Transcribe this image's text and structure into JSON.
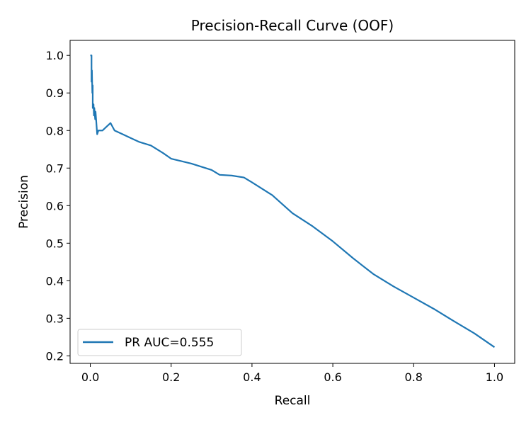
{
  "chart_data": {
    "type": "line",
    "title": "Precision-Recall Curve (OOF)",
    "xlabel": "Recall",
    "ylabel": "Precision",
    "xlim": [
      -0.05,
      1.05
    ],
    "ylim": [
      0.18,
      1.04
    ],
    "x_ticks": [
      "0.0",
      "0.2",
      "0.4",
      "0.6",
      "0.8",
      "1.0"
    ],
    "y_ticks": [
      "0.2",
      "0.3",
      "0.4",
      "0.5",
      "0.6",
      "0.7",
      "0.8",
      "0.9",
      "1.0"
    ],
    "grid": false,
    "legend": "lower-left",
    "series": [
      {
        "name": "PR AUC=0.555",
        "color": "#1f77b4",
        "points": [
          [
            0.0,
            1.0
          ],
          [
            0.003,
            1.0
          ],
          [
            0.003,
            0.93
          ],
          [
            0.004,
            0.96
          ],
          [
            0.005,
            0.9
          ],
          [
            0.006,
            0.92
          ],
          [
            0.006,
            0.86
          ],
          [
            0.008,
            0.87
          ],
          [
            0.009,
            0.84
          ],
          [
            0.01,
            0.86
          ],
          [
            0.012,
            0.83
          ],
          [
            0.013,
            0.85
          ],
          [
            0.015,
            0.82
          ],
          [
            0.017,
            0.79
          ],
          [
            0.02,
            0.8
          ],
          [
            0.03,
            0.8
          ],
          [
            0.04,
            0.81
          ],
          [
            0.05,
            0.82
          ],
          [
            0.06,
            0.8
          ],
          [
            0.08,
            0.79
          ],
          [
            0.1,
            0.78
          ],
          [
            0.12,
            0.77
          ],
          [
            0.15,
            0.76
          ],
          [
            0.18,
            0.74
          ],
          [
            0.2,
            0.725
          ],
          [
            0.25,
            0.712
          ],
          [
            0.3,
            0.695
          ],
          [
            0.32,
            0.682
          ],
          [
            0.35,
            0.68
          ],
          [
            0.38,
            0.675
          ],
          [
            0.4,
            0.662
          ],
          [
            0.45,
            0.628
          ],
          [
            0.5,
            0.58
          ],
          [
            0.55,
            0.545
          ],
          [
            0.6,
            0.505
          ],
          [
            0.65,
            0.46
          ],
          [
            0.7,
            0.418
          ],
          [
            0.75,
            0.385
          ],
          [
            0.8,
            0.355
          ],
          [
            0.85,
            0.325
          ],
          [
            0.9,
            0.292
          ],
          [
            0.95,
            0.26
          ],
          [
            1.0,
            0.223
          ]
        ]
      }
    ]
  }
}
